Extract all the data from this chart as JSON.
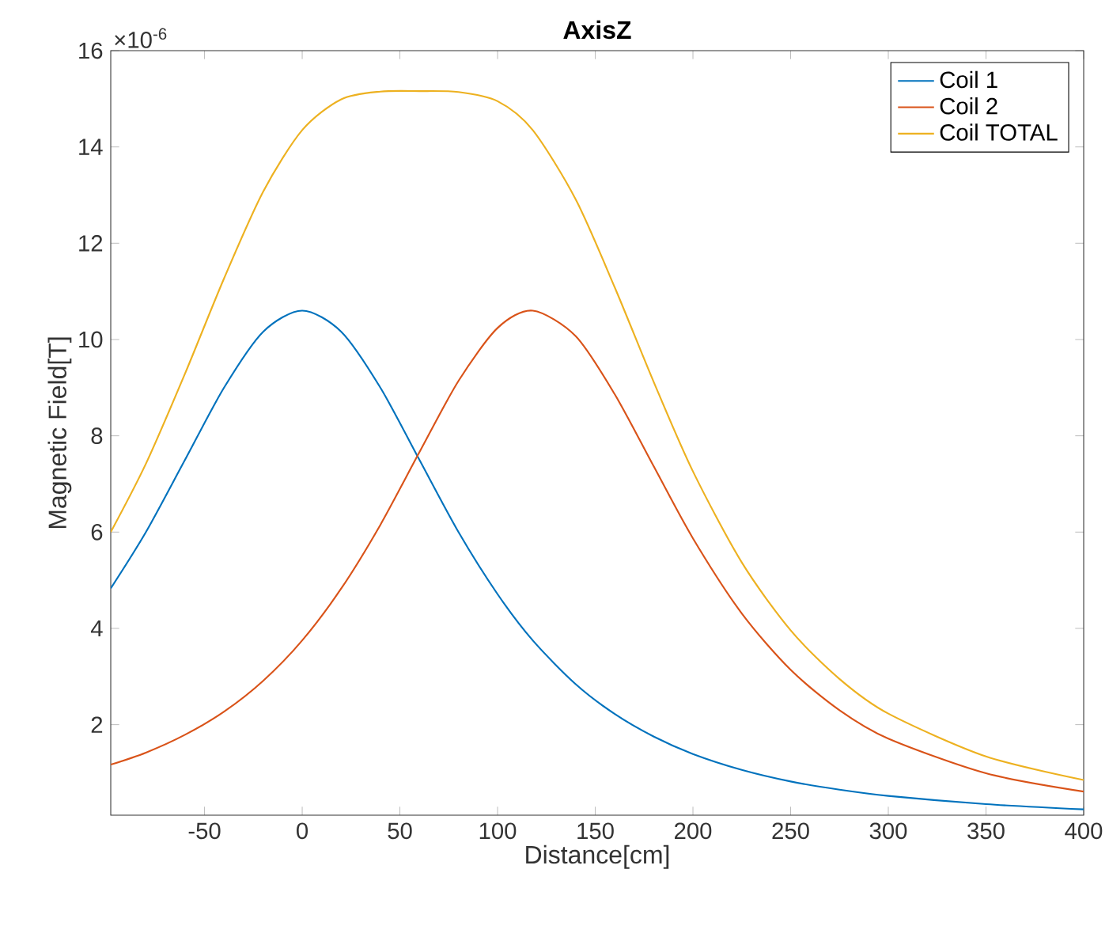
{
  "chart_data": {
    "type": "line",
    "title": "AxisZ",
    "xlabel": "Distance[cm]",
    "ylabel": "Magnetic Field[T]",
    "annotations": [
      "×10$^{-6}$"
    ],
    "x": [
      -98,
      -80,
      -60,
      -40,
      -20,
      0,
      20,
      40,
      60,
      80,
      100,
      118,
      140,
      160,
      180,
      200,
      225,
      250,
      275,
      300,
      350,
      400
    ],
    "series": [
      {
        "name": "Coil 1",
        "color": "#0072bd",
        "values": [
          4.83,
          6.0,
          7.5,
          9.0,
          10.16,
          10.6,
          10.16,
          9.0,
          7.5,
          6.0,
          4.71,
          3.75,
          2.84,
          2.22,
          1.75,
          1.39,
          1.06,
          0.82,
          0.65,
          0.52,
          0.35,
          0.24
        ]
      },
      {
        "name": "Coil 2",
        "color": "#d95319",
        "values": [
          1.17,
          1.42,
          1.79,
          2.27,
          2.91,
          3.75,
          4.83,
          6.15,
          7.66,
          9.14,
          10.24,
          10.6,
          10.07,
          8.86,
          7.36,
          5.87,
          4.31,
          3.14,
          2.3,
          1.71,
          0.99,
          0.61
        ]
      },
      {
        "name": "Coil TOTAL",
        "color": "#edb120",
        "values": [
          6.0,
          7.42,
          9.29,
          11.27,
          13.07,
          14.35,
          14.99,
          15.15,
          15.16,
          15.14,
          14.95,
          14.35,
          12.91,
          11.08,
          9.11,
          7.26,
          5.37,
          3.96,
          2.95,
          2.23,
          1.34,
          0.85
        ]
      }
    ],
    "xlim": [
      -98,
      400
    ],
    "xticks": [
      -50,
      0,
      50,
      100,
      150,
      200,
      250,
      300,
      350,
      400
    ],
    "ylim": [
      0.12,
      16
    ],
    "yticks": [
      2,
      4,
      6,
      8,
      10,
      12,
      14,
      16
    ],
    "grid": false,
    "legend": "top right",
    "marker": "none",
    "line_style": "solid"
  }
}
